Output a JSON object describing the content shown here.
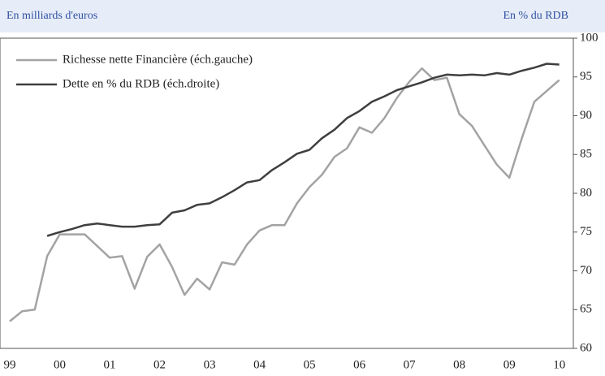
{
  "chart_data": {
    "type": "line",
    "left_axis_label": "En milliards d'euros",
    "right_axis_label": "En % du RDB",
    "categories": [
      "99",
      null,
      null,
      null,
      "00",
      null,
      null,
      null,
      "01",
      null,
      null,
      null,
      "02",
      null,
      null,
      null,
      "03",
      null,
      null,
      null,
      "04",
      null,
      null,
      null,
      "05",
      null,
      null,
      null,
      "06",
      null,
      null,
      null,
      "07",
      null,
      null,
      null,
      "08",
      null,
      null,
      null,
      "09",
      null,
      null,
      null,
      "10"
    ],
    "series": [
      {
        "name": "Richesse nette Financière (éch.gauche)",
        "color": "#a3a3a3",
        "values": [
          63.5,
          64.8,
          65.0,
          71.9,
          74.7,
          74.7,
          74.7,
          73.2,
          71.7,
          71.9,
          67.7,
          71.8,
          73.4,
          70.5,
          66.9,
          69.0,
          67.6,
          71.1,
          70.8,
          73.4,
          75.2,
          75.9,
          75.9,
          78.7,
          80.8,
          82.4,
          84.7,
          85.8,
          88.5,
          87.8,
          89.7,
          92.3,
          94.4,
          96.1,
          94.6,
          94.9,
          90.2,
          88.7,
          86.2,
          83.7,
          82.0,
          87.1,
          91.8,
          93.2,
          94.6
        ]
      },
      {
        "name": "Dette en % du RDB (éch.droite)",
        "color": "#3f3f3f",
        "values": [
          null,
          null,
          null,
          74.5,
          75.0,
          75.4,
          75.9,
          76.1,
          75.9,
          75.7,
          75.7,
          75.9,
          76.0,
          77.5,
          77.8,
          78.5,
          78.7,
          79.5,
          80.4,
          81.4,
          81.7,
          83.0,
          84.0,
          85.1,
          85.6,
          87.1,
          88.2,
          89.7,
          90.6,
          91.8,
          92.5,
          93.3,
          93.8,
          94.3,
          94.9,
          95.3,
          95.2,
          95.3,
          95.2,
          95.5,
          95.3,
          95.8,
          96.2,
          96.7,
          96.6
        ]
      }
    ],
    "ylim": [
      60,
      100
    ],
    "yticks": [
      60,
      65,
      70,
      75,
      80,
      85,
      90,
      95,
      100
    ],
    "grid": false
  }
}
